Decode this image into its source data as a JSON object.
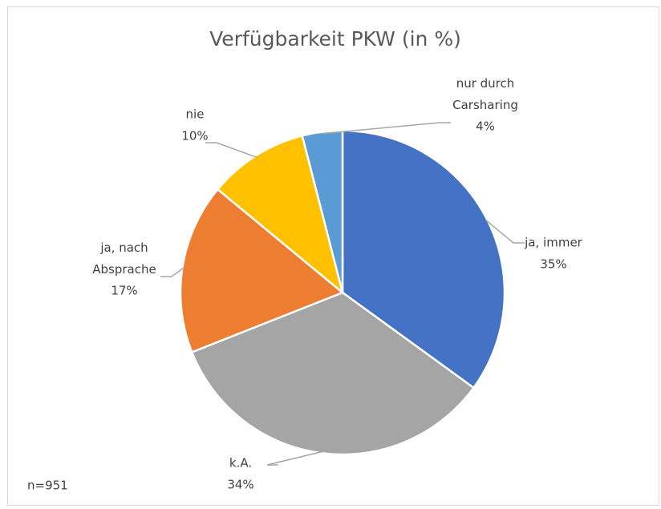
{
  "chart_data": {
    "type": "pie",
    "title": "Verfügbarkeit PKW (in %)",
    "categories": [
      "ja, immer",
      "k.A.",
      "ja, nach Absprache",
      "nie",
      "nur durch Carsharing"
    ],
    "values": [
      35,
      34,
      17,
      10,
      4
    ],
    "value_labels": [
      "35%",
      "34%",
      "17%",
      "10%",
      "4%"
    ],
    "colors": [
      "#4472c4",
      "#a5a5a5",
      "#ed7d31",
      "#ffc000",
      "#5b9bd5"
    ],
    "note": "n=951"
  }
}
